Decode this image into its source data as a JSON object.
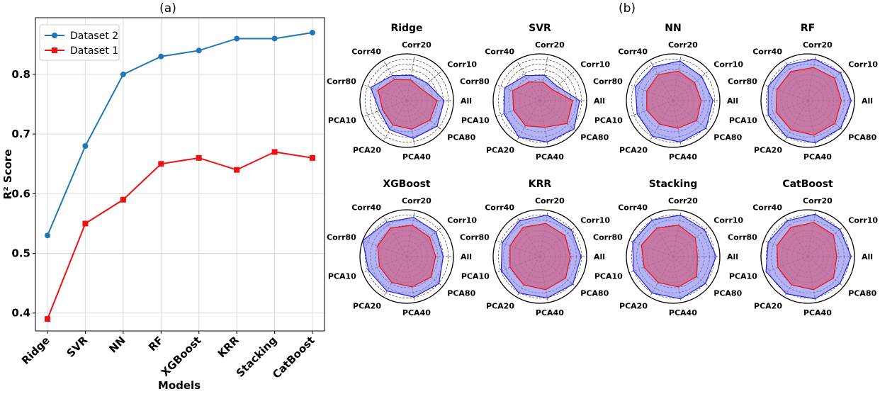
{
  "panel_labels": {
    "a": "(a)",
    "b": "(b)"
  },
  "chart_data": [
    {
      "type": "line",
      "xlabel": "Models",
      "ylabel": "R² Score",
      "categories": [
        "Ridge",
        "SVR",
        "NN",
        "RF",
        "XGBoost",
        "KRR",
        "Stacking",
        "CatBoost"
      ],
      "ylim": [
        0.37,
        0.895
      ],
      "yticks": [
        "0.4",
        "0.5",
        "0.6",
        "0.7",
        "0.8"
      ],
      "grid": true,
      "legend": "top-left",
      "series": [
        {
          "name": "Dataset 2",
          "color": "#1f77b4",
          "marker": "circle",
          "values": [
            0.53,
            0.68,
            0.8,
            0.83,
            0.84,
            0.86,
            0.86,
            0.87
          ]
        },
        {
          "name": "Dataset 1",
          "color": "#ee1111",
          "marker": "square",
          "values": [
            0.39,
            0.55,
            0.59,
            0.65,
            0.66,
            0.64,
            0.67,
            0.66
          ]
        }
      ]
    },
    {
      "type": "radar",
      "axes": [
        "All",
        "Corr10",
        "Corr20",
        "Corr40",
        "Corr80",
        "PCA10",
        "PCA20",
        "PCA40",
        "PCA80"
      ],
      "rmax": 1.0,
      "grid_rings": 9,
      "colors": {
        "dataset2_fill": "#8080ee",
        "dataset2_line": "#2222dd",
        "dataset1_fill": "#cc6688",
        "dataset1_line": "#ee1111"
      },
      "charts": [
        {
          "title": "Ridge",
          "dataset2": [
            0.8,
            0.58,
            0.55,
            0.62,
            0.82,
            0.62,
            0.72,
            0.82,
            0.85
          ],
          "dataset1": [
            0.65,
            0.4,
            0.45,
            0.52,
            0.65,
            0.55,
            0.6,
            0.62,
            0.65
          ]
        },
        {
          "title": "SVR",
          "dataset2": [
            0.85,
            0.48,
            0.55,
            0.62,
            0.8,
            0.82,
            0.9,
            0.9,
            0.95
          ],
          "dataset1": [
            0.7,
            0.36,
            0.4,
            0.46,
            0.62,
            0.6,
            0.62,
            0.58,
            0.76
          ]
        },
        {
          "title": "NN",
          "dataset2": [
            0.85,
            0.8,
            0.86,
            0.84,
            0.86,
            0.82,
            0.88,
            0.9,
            0.92
          ],
          "dataset1": [
            0.6,
            0.6,
            0.64,
            0.64,
            0.6,
            0.6,
            0.58,
            0.6,
            0.66
          ]
        },
        {
          "title": "RF",
          "dataset2": [
            0.93,
            0.92,
            0.9,
            0.88,
            0.9,
            0.9,
            0.9,
            0.92,
            0.92
          ],
          "dataset1": [
            0.72,
            0.75,
            0.72,
            0.72,
            0.7,
            0.72,
            0.72,
            0.75,
            0.76
          ]
        },
        {
          "title": "XGBoost",
          "dataset2": [
            0.78,
            0.82,
            0.85,
            0.85,
            1.0,
            0.87,
            0.85,
            0.88,
            0.9
          ],
          "dataset1": [
            0.62,
            0.64,
            0.68,
            0.7,
            0.66,
            0.62,
            0.64,
            0.66,
            0.68
          ]
        },
        {
          "title": "KRR",
          "dataset2": [
            0.88,
            0.88,
            0.9,
            0.88,
            0.86,
            0.88,
            0.9,
            0.9,
            0.92
          ],
          "dataset1": [
            0.65,
            0.7,
            0.72,
            0.72,
            0.68,
            0.68,
            0.7,
            0.72,
            0.72
          ]
        },
        {
          "title": "Stacking",
          "dataset2": [
            0.92,
            0.88,
            0.9,
            0.9,
            0.92,
            0.9,
            0.9,
            0.92,
            0.9
          ],
          "dataset1": [
            0.52,
            0.62,
            0.68,
            0.7,
            0.72,
            0.66,
            0.64,
            0.66,
            0.66
          ]
        },
        {
          "title": "CatBoost",
          "dataset2": [
            0.93,
            0.9,
            0.92,
            0.88,
            0.9,
            0.95,
            0.92,
            0.92,
            0.9
          ],
          "dataset1": [
            0.62,
            0.72,
            0.74,
            0.72,
            0.7,
            0.68,
            0.7,
            0.72,
            0.72
          ]
        }
      ]
    }
  ]
}
